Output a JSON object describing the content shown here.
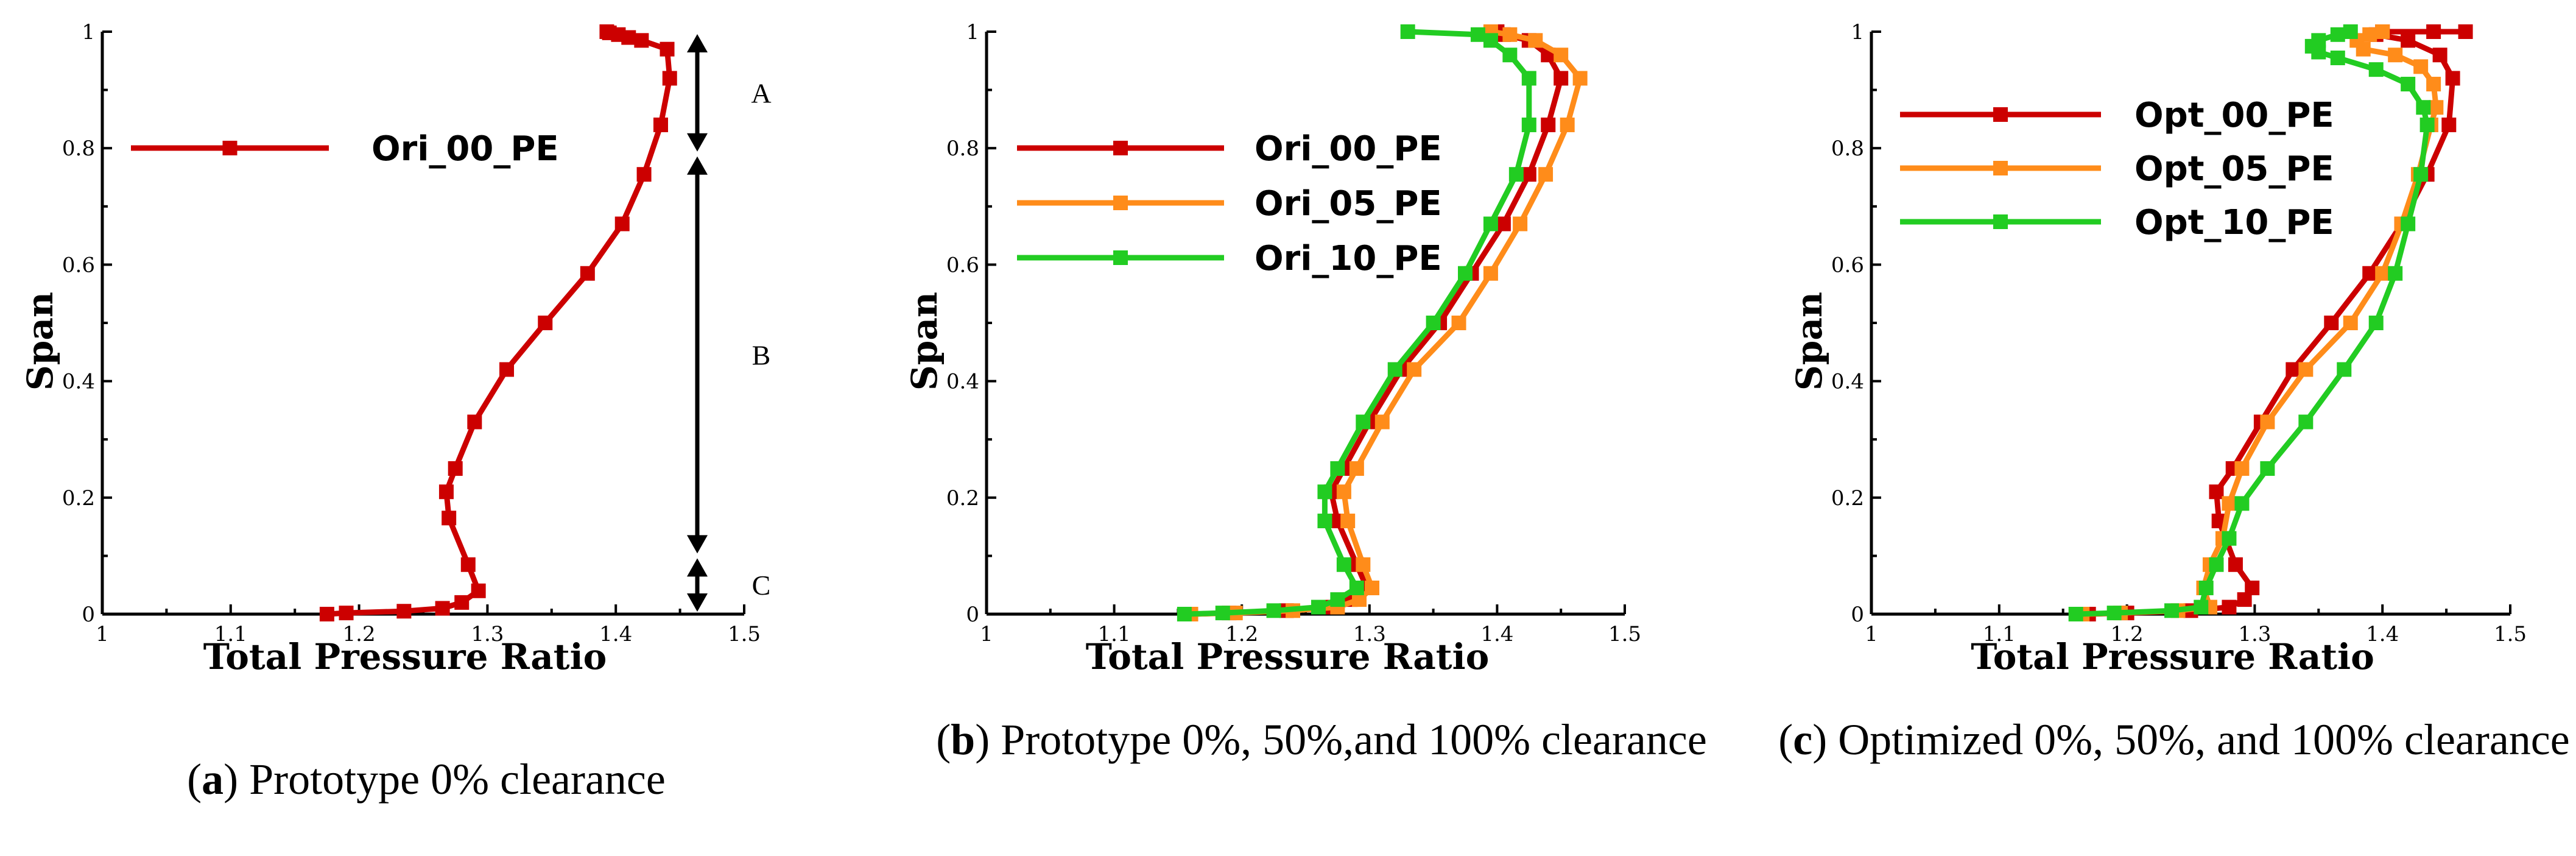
{
  "panels": [
    {
      "caption": {
        "letter": "a",
        "text": "Prototype 0% clearance"
      },
      "chart_data": {
        "type": "line",
        "xlabel": "Total Pressure Ratio",
        "ylabel": "Span",
        "xlim": [
          1,
          1.5
        ],
        "ylim": [
          0,
          1
        ],
        "xticks": [
          "1",
          "1.1",
          "1.2",
          "1.3",
          "1.4",
          "1.5"
        ],
        "yticks": [
          "0",
          "0.2",
          "0.4",
          "0.6",
          "0.8",
          "1"
        ],
        "legend_position": "top-left",
        "series": [
          {
            "name": "Ori_00_PE",
            "color": "#cc0000",
            "x": [
              1.175,
              1.19,
              1.235,
              1.265,
              1.28,
              1.293,
              1.285,
              1.27,
              1.268,
              1.275,
              1.29,
              1.315,
              1.345,
              1.378,
              1.405,
              1.422,
              1.435,
              1.442,
              1.44,
              1.42,
              1.41,
              1.402,
              1.395,
              1.393
            ],
            "y": [
              0.0,
              0.002,
              0.005,
              0.01,
              0.02,
              0.04,
              0.085,
              0.165,
              0.21,
              0.25,
              0.33,
              0.42,
              0.5,
              0.585,
              0.67,
              0.755,
              0.84,
              0.92,
              0.97,
              0.985,
              0.99,
              0.995,
              0.998,
              1.0
            ]
          }
        ],
        "regions": [
          {
            "label": "A",
            "from": 0.79,
            "to": 1.0
          },
          {
            "label": "B",
            "from": 0.1,
            "to": 0.79
          },
          {
            "label": "C",
            "from": 0.0,
            "to": 0.1
          }
        ]
      }
    },
    {
      "caption": {
        "letter": "b",
        "text": "Prototype 0%, 50%,and 100% clearance"
      },
      "chart_data": {
        "type": "line",
        "xlabel": "Total Pressure Ratio",
        "ylabel": "Span",
        "xlim": [
          1,
          1.5
        ],
        "ylim": [
          0,
          1
        ],
        "xticks": [
          "1",
          "1.1",
          "1.2",
          "1.3",
          "1.4",
          "1.5"
        ],
        "yticks": [
          "0",
          "0.2",
          "0.4",
          "0.6",
          "0.8",
          "1"
        ],
        "legend_position": "top-left",
        "series": [
          {
            "name": "Ori_00_PE",
            "color": "#cc0000",
            "x": [
              1.16,
              1.19,
              1.235,
              1.27,
              1.285,
              1.298,
              1.29,
              1.275,
              1.27,
              1.28,
              1.3,
              1.325,
              1.355,
              1.38,
              1.405,
              1.425,
              1.44,
              1.45,
              1.44,
              1.425,
              1.405,
              1.4
            ],
            "y": [
              0.0,
              0.002,
              0.006,
              0.012,
              0.025,
              0.045,
              0.085,
              0.16,
              0.21,
              0.25,
              0.33,
              0.42,
              0.5,
              0.585,
              0.67,
              0.755,
              0.84,
              0.92,
              0.96,
              0.985,
              0.995,
              1.0
            ]
          },
          {
            "name": "Ori_05_PE",
            "color": "#ff8c1a",
            "x": [
              1.16,
              1.195,
              1.24,
              1.275,
              1.292,
              1.302,
              1.295,
              1.283,
              1.28,
              1.29,
              1.31,
              1.335,
              1.37,
              1.395,
              1.418,
              1.438,
              1.455,
              1.465,
              1.45,
              1.43,
              1.41,
              1.395
            ],
            "y": [
              0.0,
              0.002,
              0.006,
              0.012,
              0.025,
              0.045,
              0.085,
              0.16,
              0.21,
              0.25,
              0.33,
              0.42,
              0.5,
              0.585,
              0.67,
              0.755,
              0.84,
              0.92,
              0.96,
              0.985,
              0.995,
              1.0
            ]
          },
          {
            "name": "Ori_10_PE",
            "color": "#22cc22",
            "x": [
              1.155,
              1.185,
              1.225,
              1.26,
              1.275,
              1.29,
              1.28,
              1.265,
              1.265,
              1.275,
              1.295,
              1.32,
              1.35,
              1.375,
              1.395,
              1.415,
              1.425,
              1.425,
              1.41,
              1.395,
              1.385,
              1.33
            ],
            "y": [
              0.0,
              0.002,
              0.006,
              0.012,
              0.025,
              0.045,
              0.085,
              0.16,
              0.21,
              0.25,
              0.33,
              0.42,
              0.5,
              0.585,
              0.67,
              0.755,
              0.84,
              0.92,
              0.96,
              0.985,
              0.995,
              1.0
            ]
          }
        ]
      }
    },
    {
      "caption": {
        "letter": "c",
        "text": "Optimized 0%, 50%, and 100% clearance"
      },
      "chart_data": {
        "type": "line",
        "xlabel": "Total Pressure Ratio",
        "ylabel": "Span",
        "xlim": [
          1,
          1.5
        ],
        "ylim": [
          0,
          1
        ],
        "xticks": [
          "1",
          "1.1",
          "1.2",
          "1.3",
          "1.4",
          "1.5"
        ],
        "yticks": [
          "0",
          "0.2",
          "0.4",
          "0.6",
          "0.8",
          "1"
        ],
        "legend_position": "top-left",
        "series": [
          {
            "name": "Opt_00_PE",
            "color": "#cc0000",
            "x": [
              1.17,
              1.2,
              1.25,
              1.28,
              1.292,
              1.298,
              1.285,
              1.272,
              1.27,
              1.283,
              1.305,
              1.33,
              1.36,
              1.39,
              1.415,
              1.435,
              1.452,
              1.455,
              1.445,
              1.42,
              1.395,
              1.4,
              1.44,
              1.465
            ],
            "y": [
              0.0,
              0.002,
              0.006,
              0.012,
              0.025,
              0.045,
              0.085,
              0.16,
              0.21,
              0.25,
              0.33,
              0.42,
              0.5,
              0.585,
              0.67,
              0.755,
              0.84,
              0.92,
              0.96,
              0.985,
              0.995,
              1.0,
              1.0,
              1.0
            ]
          },
          {
            "name": "Opt_05_PE",
            "color": "#ff8c1a",
            "x": [
              1.165,
              1.195,
              1.24,
              1.265,
              1.26,
              1.265,
              1.275,
              1.28,
              1.29,
              1.31,
              1.34,
              1.375,
              1.4,
              1.415,
              1.428,
              1.438,
              1.442,
              1.44,
              1.43,
              1.41,
              1.385,
              1.38,
              1.39,
              1.4
            ],
            "y": [
              0.0,
              0.002,
              0.006,
              0.012,
              0.045,
              0.085,
              0.13,
              0.19,
              0.25,
              0.33,
              0.42,
              0.5,
              0.585,
              0.67,
              0.755,
              0.84,
              0.87,
              0.91,
              0.94,
              0.96,
              0.97,
              0.985,
              0.995,
              1.0
            ]
          },
          {
            "name": "Opt_10_PE",
            "color": "#22cc22",
            "x": [
              1.16,
              1.19,
              1.235,
              1.258,
              1.262,
              1.27,
              1.28,
              1.29,
              1.31,
              1.34,
              1.37,
              1.395,
              1.41,
              1.42,
              1.43,
              1.435,
              1.432,
              1.42,
              1.395,
              1.365,
              1.35,
              1.345,
              1.35,
              1.365,
              1.375
            ],
            "y": [
              0.0,
              0.002,
              0.006,
              0.012,
              0.045,
              0.085,
              0.13,
              0.19,
              0.25,
              0.33,
              0.42,
              0.5,
              0.585,
              0.67,
              0.755,
              0.84,
              0.87,
              0.91,
              0.935,
              0.955,
              0.965,
              0.975,
              0.985,
              0.995,
              1.0
            ]
          }
        ]
      }
    }
  ]
}
